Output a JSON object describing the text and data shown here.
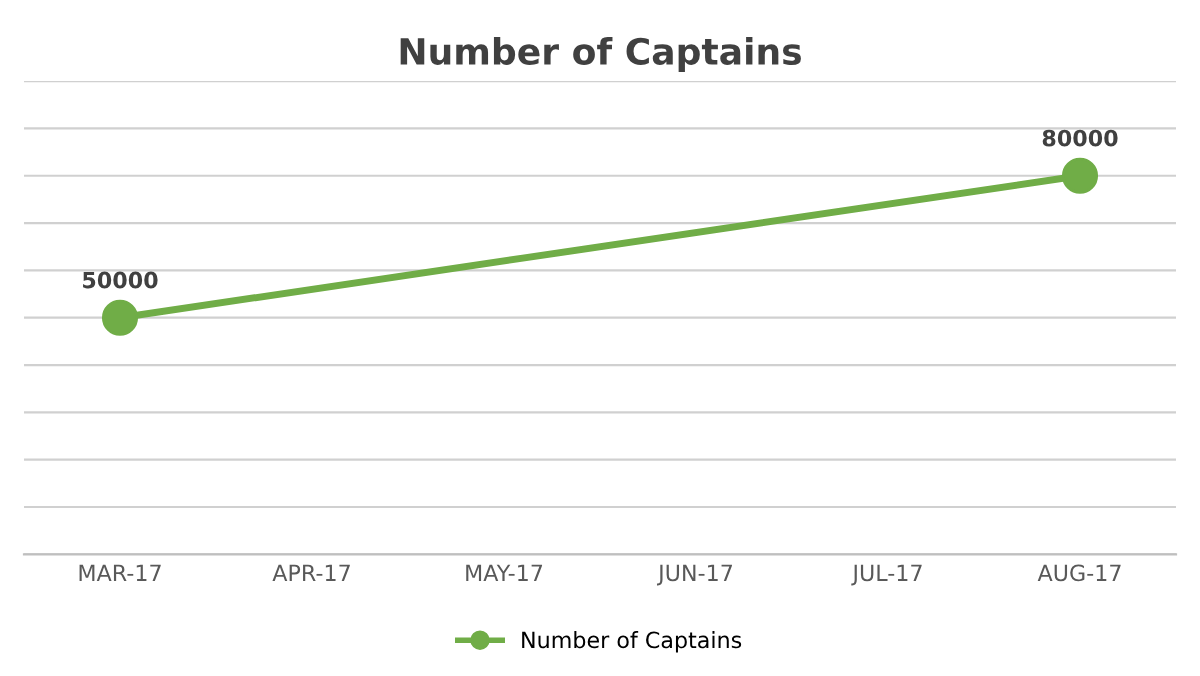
{
  "chart_data": {
    "type": "line",
    "title": "Number of Captains",
    "categories": [
      "MAR-17",
      "APR-17",
      "MAY-17",
      "JUN-17",
      "JUL-17",
      "AUG-17"
    ],
    "series": [
      {
        "name": "Number of Captains",
        "color": "#70ad47",
        "values": [
          50000,
          null,
          null,
          null,
          null,
          80000
        ]
      }
    ],
    "ylim": [
      0,
      100000
    ],
    "yticks": [
      {
        "value": 0,
        "label": null
      },
      {
        "value": 10000,
        "label": null
      },
      {
        "value": 20000,
        "label": null
      },
      {
        "value": 30000,
        "label": null
      },
      {
        "value": 40000,
        "label": null
      },
      {
        "value": 50000,
        "label": null
      },
      {
        "value": 60000,
        "label": null
      },
      {
        "value": 70000,
        "label": null
      },
      {
        "value": 80000,
        "label": null
      },
      {
        "value": 90000,
        "label": null
      },
      {
        "value": 100000,
        "label": null
      }
    ],
    "tick_labels": "x",
    "grid": "y",
    "legend": "bottom",
    "marker": "circle",
    "line_style": "solid",
    "data_labels": true
  }
}
